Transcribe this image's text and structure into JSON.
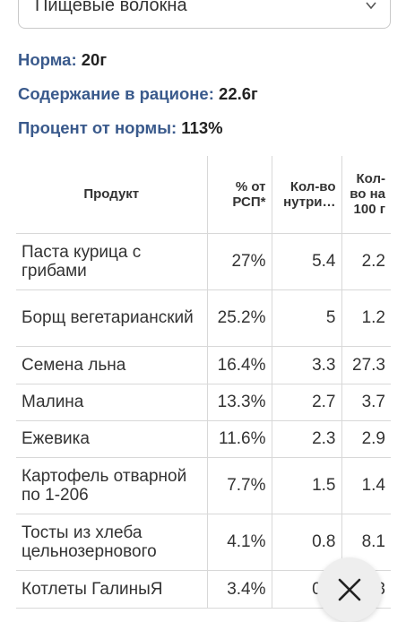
{
  "nutrient_select": {
    "value": "Пищевые волокна"
  },
  "stats": {
    "norm_label": "Норма:",
    "norm_value": "20г",
    "content_label": "Содержание в рационе:",
    "content_value": "22.6г",
    "percent_label": "Процент от нормы:",
    "percent_value": "113%"
  },
  "table": {
    "headers": [
      "Продукт",
      "% от РСП*",
      "Кол-во нутри…",
      "Кол-во на 100 г"
    ],
    "rows": [
      [
        "Паста курица с грибами",
        "27%",
        "5.4",
        "2.2"
      ],
      [
        "Борщ вегетарианский",
        "25.2%",
        "5",
        "1.2"
      ],
      [
        "Семена льна",
        "16.4%",
        "3.3",
        "27.3"
      ],
      [
        "Малина",
        "13.3%",
        "2.7",
        "3.7"
      ],
      [
        "Ежевика",
        "11.6%",
        "2.3",
        "2.9"
      ],
      [
        "Картофель отварной по 1-206",
        "7.7%",
        "1.5",
        "1.4"
      ],
      [
        "Тосты из хлеба цельнозернового",
        "4.1%",
        "0.8",
        "8.1"
      ],
      [
        "Котлеты ГалиныЯ",
        "3.4%",
        "0.7",
        "3"
      ]
    ]
  },
  "icons": {
    "chevron": "chevron-down-icon",
    "close": "close-icon"
  },
  "colors": {
    "label": "#3a5a8c",
    "text": "#222222",
    "border": "#d8d8d8"
  }
}
